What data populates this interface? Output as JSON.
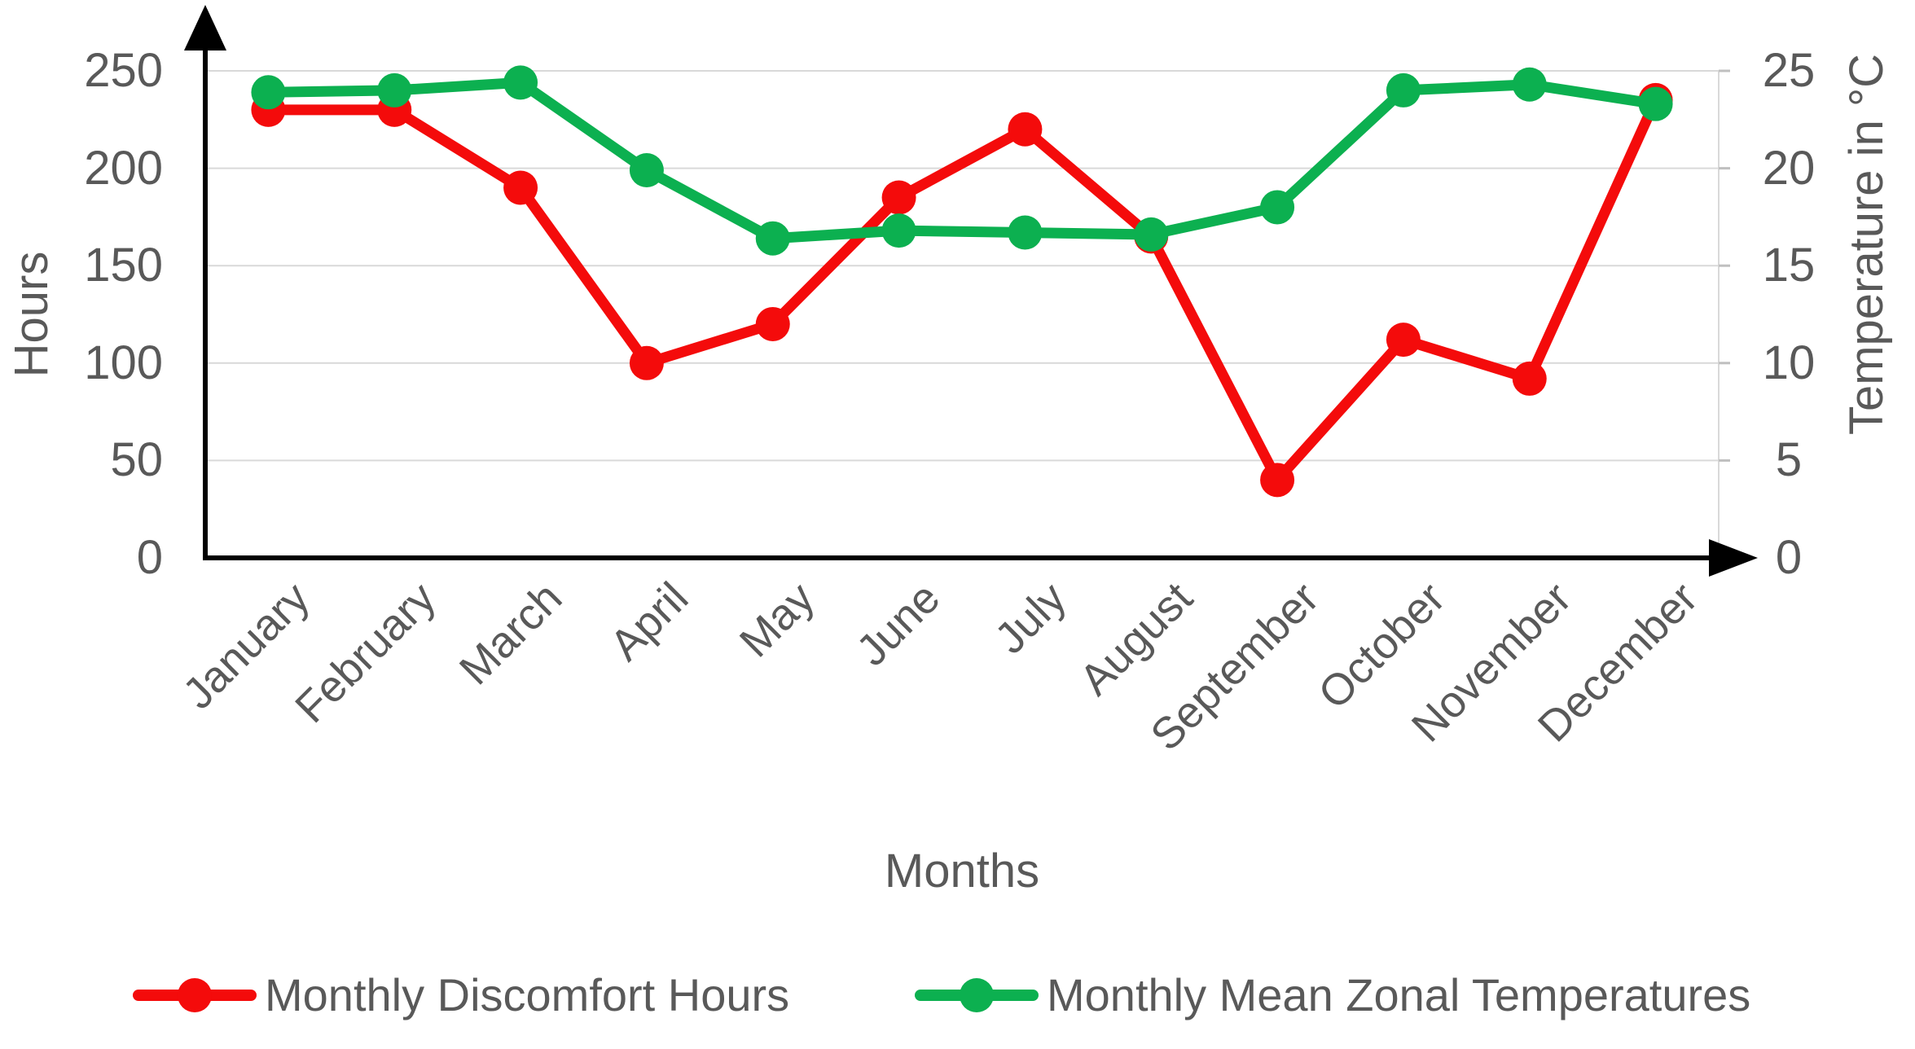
{
  "chart_data": {
    "type": "line",
    "categories": [
      "January",
      "February",
      "March",
      "April",
      "May",
      "June",
      "July",
      "August",
      "September",
      "October",
      "November",
      "December"
    ],
    "series": [
      {
        "name": "Monthly Discomfort Hours",
        "axis": "left",
        "color": "#f40b0b",
        "values": [
          230,
          230,
          190,
          100,
          120,
          185,
          220,
          165,
          40,
          112,
          92,
          235
        ]
      },
      {
        "name": "Monthly Mean Zonal Temperatures",
        "axis": "right",
        "color": "#0cb050",
        "values": [
          23.9,
          24.0,
          24.4,
          19.9,
          16.4,
          16.8,
          16.7,
          16.6,
          18.0,
          24.0,
          24.3,
          23.3
        ]
      }
    ],
    "x_axis": {
      "label": "Months"
    },
    "y_left": {
      "label": "Hours",
      "min": 0,
      "max": 250,
      "step": 50,
      "ticks": [
        "250",
        "200",
        "150",
        "100",
        "50",
        "0"
      ]
    },
    "y_right": {
      "label": "Temperature in °C",
      "min": 0,
      "max": 25,
      "step": 5,
      "ticks": [
        "25",
        "20",
        "15",
        "10",
        "5",
        "0"
      ]
    },
    "grid": true,
    "legend_position": "bottom",
    "colors": {
      "background": "#ffffff",
      "gridline": "#d9d9d9",
      "plot_border": "#d9d9d9",
      "axis_tick_dash": "#bfbfbf",
      "axis_line": "#000000",
      "axis_text": "#595959"
    }
  }
}
